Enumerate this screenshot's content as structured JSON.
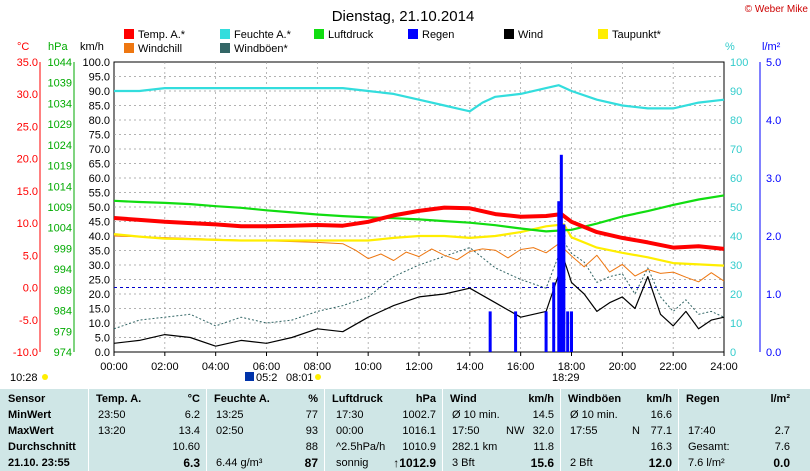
{
  "title": "Dienstag, 21.10.2014",
  "copyright": "© Weber Mike",
  "colors": {
    "temp": "#ff0000",
    "humid": "#33dddd",
    "pressure": "#11dd11",
    "rain": "#0000ff",
    "wind": "#000000",
    "dew": "#ffee00",
    "windchill": "#ee7711",
    "gust": "#336666"
  },
  "legend": [
    {
      "name": "Temp. A.*",
      "color": "#ff0000"
    },
    {
      "name": "Feuchte A.*",
      "color": "#33dddd"
    },
    {
      "name": "Luftdruck",
      "color": "#11dd11"
    },
    {
      "name": "Regen",
      "color": "#0000ff"
    },
    {
      "name": "Wind",
      "color": "#000000"
    },
    {
      "name": "Taupunkt*",
      "color": "#ffee00"
    },
    {
      "name": "Windchill",
      "color": "#ee7711"
    },
    {
      "name": "Windböen*",
      "color": "#336666"
    }
  ],
  "axis_units": {
    "temp": "°C",
    "pressure": "hPa",
    "wind": "km/h",
    "humid": "%",
    "rain": "l/m²"
  },
  "chart_data": {
    "type": "line",
    "x_ticks": [
      "00:00",
      "02:00",
      "04:00",
      "06:00",
      "08:00",
      "10:00",
      "12:00",
      "14:00",
      "16:00",
      "18:00",
      "20:00",
      "22:00",
      "24:00"
    ],
    "temp_ticks": [
      "35.0",
      "30.0",
      "25.0",
      "20.0",
      "15.0",
      "10.0",
      "5.0",
      "0.0",
      "-5.0",
      "-10.0"
    ],
    "pressure_ticks": [
      "1044",
      "1039",
      "1034",
      "1029",
      "1024",
      "1019",
      "1014",
      "1009",
      "1004",
      "999",
      "994",
      "989",
      "984",
      "979",
      "974"
    ],
    "wind_ticks": [
      "100.0",
      "95.0",
      "90.0",
      "85.0",
      "80.0",
      "75.0",
      "70.0",
      "65.0",
      "60.0",
      "55.0",
      "50.0",
      "45.0",
      "40.0",
      "35.0",
      "30.0",
      "25.0",
      "20.0",
      "15.0",
      "10.0",
      "5.0",
      "0.0"
    ],
    "humid_ticks": [
      "100",
      "90",
      "80",
      "70",
      "60",
      "50",
      "40",
      "30",
      "20",
      "10",
      "0"
    ],
    "rain_ticks": [
      "5.0",
      "4.0",
      "3.0",
      "2.0",
      "1.0",
      "0.0"
    ],
    "temp_range": [
      -10,
      35
    ],
    "pressure_range": [
      974,
      1044
    ],
    "wind_range": [
      0,
      100
    ],
    "humid_range": [
      0,
      100
    ],
    "rain_range": [
      0,
      5
    ],
    "series": [
      {
        "name": "Temp. A.*",
        "axis": "temp",
        "x": [
          0,
          1,
          2,
          3,
          4,
          5,
          6,
          7,
          8,
          9,
          10,
          11,
          12,
          13,
          14,
          15,
          16,
          17,
          17.6,
          18,
          19,
          20,
          21,
          22,
          23,
          24
        ],
        "values": [
          10.8,
          10.5,
          10.2,
          10.0,
          9.8,
          9.5,
          9.5,
          9.6,
          9.7,
          9.6,
          10.2,
          11.2,
          11.9,
          12.4,
          12.3,
          11.4,
          11.0,
          11.1,
          11.4,
          10.2,
          8.6,
          7.7,
          7.0,
          6.2,
          6.4,
          6.0
        ]
      },
      {
        "name": "Feuchte A.*",
        "axis": "humid",
        "x": [
          0,
          1,
          2,
          3,
          4,
          5,
          6,
          7,
          8,
          9,
          10,
          11,
          12,
          13,
          13.5,
          14,
          14.5,
          15,
          16,
          17,
          17.5,
          18,
          19,
          20,
          21,
          22,
          23,
          24
        ],
        "values": [
          90,
          90,
          91,
          91,
          91,
          91,
          91,
          91,
          91,
          91,
          90,
          89,
          87,
          85,
          84,
          83,
          86,
          88,
          89,
          91,
          92,
          90,
          87,
          85,
          84,
          84,
          86,
          87
        ]
      },
      {
        "name": "Luftdruck",
        "axis": "pressure",
        "x": [
          0,
          1,
          2,
          3,
          4,
          5,
          6,
          7,
          8,
          9,
          10,
          11,
          12,
          13,
          14,
          15,
          16,
          17,
          18,
          19,
          20,
          21,
          22,
          23,
          24
        ],
        "values": [
          1010.5,
          1010.2,
          1010.0,
          1009.7,
          1009.2,
          1008.8,
          1008.2,
          1007.7,
          1007.2,
          1006.8,
          1006.5,
          1006.3,
          1006.0,
          1005.6,
          1005.2,
          1004.6,
          1003.8,
          1003.1,
          1003.5,
          1005.0,
          1006.7,
          1008.0,
          1009.5,
          1010.8,
          1011.8
        ]
      },
      {
        "name": "Taupunkt*",
        "axis": "temp",
        "x": [
          0,
          1,
          2,
          3,
          4,
          5,
          6,
          7,
          8,
          9,
          10,
          11,
          12,
          13,
          14,
          15,
          16,
          17,
          17.7,
          18,
          19,
          20,
          21,
          22,
          23,
          24
        ],
        "values": [
          8.3,
          7.9,
          7.6,
          7.5,
          7.4,
          7.3,
          7.3,
          7.3,
          7.3,
          7.3,
          7.3,
          7.7,
          8.0,
          8.0,
          7.7,
          8.0,
          8.6,
          9.5,
          9.8,
          7.8,
          6.2,
          5.4,
          4.7,
          3.8,
          3.6,
          3.4
        ]
      },
      {
        "name": "Windchill",
        "axis": "temp",
        "x": [
          0,
          4,
          8,
          9,
          9.5,
          10,
          10.5,
          11,
          11.5,
          12,
          12.5,
          13,
          13.5,
          14,
          14.5,
          15,
          15.5,
          16,
          16.5,
          17,
          17.5,
          18,
          18.5,
          19,
          19.5,
          20,
          20.5,
          21,
          21.5,
          22,
          22.5,
          23,
          23.5,
          24
        ],
        "values": [
          8.0,
          7.5,
          7.0,
          6.8,
          5.8,
          4.5,
          5.2,
          4.2,
          5.5,
          4.8,
          6.0,
          5.0,
          4.3,
          5.6,
          6.0,
          5.8,
          4.6,
          5.9,
          6.2,
          5.4,
          6.8,
          4.9,
          3.2,
          5.0,
          2.4,
          3.6,
          1.8,
          2.8,
          2.2,
          2.4,
          1.6,
          0.9,
          2.3,
          1.0
        ]
      },
      {
        "name": "Wind",
        "axis": "wind",
        "x": [
          0,
          1,
          2,
          3,
          4,
          5,
          6,
          7,
          8,
          9,
          10,
          11,
          12,
          13,
          14,
          15,
          16,
          17,
          17.7,
          18,
          18.5,
          19,
          19.5,
          20,
          20.5,
          21,
          21.5,
          22,
          22.5,
          23,
          23.5,
          24
        ],
        "values": [
          3,
          4,
          6,
          5,
          2,
          4,
          3,
          5,
          8,
          7,
          12,
          16,
          19,
          20,
          22,
          17,
          12,
          14,
          32,
          24,
          20,
          14,
          17,
          19,
          15,
          26,
          13,
          9,
          14,
          8,
          11,
          12
        ]
      },
      {
        "name": "Windböen*",
        "axis": "wind",
        "x": [
          0,
          1,
          2,
          3,
          4,
          5,
          6,
          7,
          8,
          9,
          10,
          11,
          12,
          13,
          14,
          15,
          16,
          17,
          17.7,
          18,
          18.5,
          19,
          19.5,
          20,
          20.5,
          21,
          21.5,
          22,
          22.5,
          23,
          23.5,
          24
        ],
        "values": [
          8,
          11,
          12,
          13,
          9,
          12,
          10,
          11,
          14,
          16,
          19,
          26,
          30,
          33,
          36,
          29,
          25,
          22,
          38,
          34,
          31,
          24,
          26,
          27,
          20,
          29,
          19,
          14,
          18,
          13,
          14,
          12
        ]
      }
    ],
    "rain_bars": [
      {
        "x": 14.8,
        "value": 0.7
      },
      {
        "x": 15.8,
        "value": 0.7
      },
      {
        "x": 17.0,
        "value": 0.7
      },
      {
        "x": 17.3,
        "value": 1.2
      },
      {
        "x": 17.5,
        "value": 2.6
      },
      {
        "x": 17.6,
        "value": 3.4
      },
      {
        "x": 17.7,
        "value": 2.2
      },
      {
        "x": 17.85,
        "value": 0.7
      },
      {
        "x": 18.0,
        "value": 0.7
      }
    ],
    "zero_line": 0.0
  },
  "sun": {
    "rise": "08:01",
    "set": "18:29",
    "daylength": "10:28",
    "moon": "05:2"
  },
  "panel": {
    "headers": [
      "Sensor",
      "Temp. A.",
      "°C",
      "Feuchte A.",
      "%",
      "Luftdruck",
      "hPa",
      "Wind",
      "km/h",
      "Windböen",
      "km/h",
      "Regen",
      "l/m²"
    ],
    "rows": [
      {
        "label": "MinWert",
        "t_time": "23:50",
        "t_val": "6.2",
        "h_time": "13:25",
        "h_val": "77",
        "p_time": "17:30",
        "p_val": "1002.7",
        "w_a": "Ø 10 min.",
        "w_val": "14.5",
        "g_a": "Ø 10 min.",
        "g_val": "16.6",
        "r_a": "",
        "r_val": ""
      },
      {
        "label": "MaxWert",
        "t_time": "13:20",
        "t_val": "13.4",
        "h_time": "02:50",
        "h_val": "93",
        "p_time": "00:00",
        "p_val": "1016.1",
        "w_a": "17:50",
        "w_b": "NW",
        "w_val": "32.0",
        "g_a": "17:55",
        "g_b": "N",
        "g_val": "77.1",
        "r_a": "17:40",
        "r_val": "2.7"
      },
      {
        "label": "Durchschnitt",
        "t_time": "",
        "t_val": "10.60",
        "h_time": "",
        "h_val": "88",
        "p_time": "^2.5hPa/h",
        "p_val": "1010.9",
        "w_a": "282.1 km",
        "w_val": "11.8",
        "g_a": "",
        "g_val": "16.3",
        "r_a": "Gesamt:",
        "r_val": "7.6"
      },
      {
        "label": "21.10. 23:55",
        "t_time": "",
        "t_val": "6.3",
        "h_time": "6.44 g/m³",
        "h_val": "87",
        "p_time": "sonnig",
        "p_val": "↑1012.9",
        "w_a": "3 Bft",
        "w_val": "15.6",
        "g_a": "2 Bft",
        "g_val": "12.0",
        "r_a": "7.6 l/m²",
        "r_val": "0.0"
      }
    ]
  }
}
